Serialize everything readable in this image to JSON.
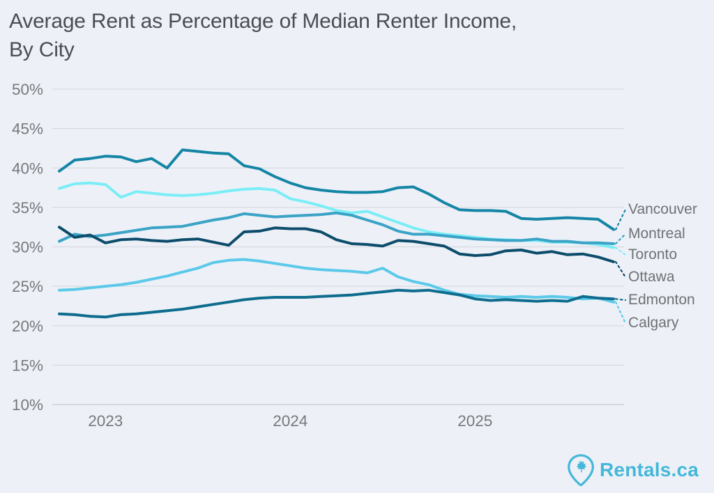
{
  "header": {
    "title_line1": "Average Rent as Percentage of Median Renter Income,",
    "title_line2": "By City"
  },
  "chart_data": {
    "type": "line",
    "title": "Average Rent as Percentage of Median Renter Income, By City",
    "y_unit": "%",
    "ylim": [
      10,
      50
    ],
    "y_ticks": [
      50,
      45,
      40,
      35,
      30,
      25,
      20,
      15,
      10
    ],
    "x_tick_labels": [
      "2023",
      "2024",
      "2025"
    ],
    "grid": "horizontal",
    "legend_position": "right-edge-labels",
    "x": [
      "2022-10",
      "2022-11",
      "2022-12",
      "2023-01",
      "2023-02",
      "2023-03",
      "2023-04",
      "2023-05",
      "2023-06",
      "2023-07",
      "2023-08",
      "2023-09",
      "2023-10",
      "2023-11",
      "2023-12",
      "2024-01",
      "2024-02",
      "2024-03",
      "2024-04",
      "2024-05",
      "2024-06",
      "2024-07",
      "2024-08",
      "2024-09",
      "2024-10",
      "2024-11",
      "2024-12",
      "2025-01",
      "2025-02",
      "2025-03",
      "2025-04",
      "2025-05",
      "2025-06",
      "2025-07",
      "2025-08",
      "2025-09",
      "2025-10"
    ],
    "series": [
      {
        "name": "Vancouver",
        "color": "#1585A6",
        "values": [
          39.6,
          41.0,
          41.2,
          41.5,
          41.4,
          40.8,
          41.2,
          40.0,
          42.3,
          42.1,
          41.9,
          41.8,
          40.3,
          39.9,
          38.9,
          38.1,
          37.5,
          37.2,
          37.0,
          36.9,
          36.9,
          37.0,
          37.5,
          37.6,
          36.7,
          35.6,
          34.7,
          34.6,
          34.6,
          34.5,
          33.6,
          33.5,
          33.6,
          33.7,
          33.6,
          33.5,
          32.2
        ]
      },
      {
        "name": "Montreal",
        "color": "#3BA3C6",
        "values": [
          30.7,
          31.6,
          31.3,
          31.5,
          31.8,
          32.1,
          32.4,
          32.5,
          32.6,
          33.0,
          33.4,
          33.7,
          34.2,
          34.0,
          33.8,
          33.9,
          34.0,
          34.1,
          34.3,
          34.0,
          33.4,
          32.8,
          32.0,
          31.6,
          31.6,
          31.4,
          31.2,
          31.0,
          30.9,
          30.8,
          30.8,
          31.0,
          30.7,
          30.7,
          30.5,
          30.5,
          30.4
        ]
      },
      {
        "name": "Toronto",
        "color": "#7BEDF6",
        "values": [
          37.4,
          38.0,
          38.1,
          37.9,
          36.3,
          37.0,
          36.8,
          36.6,
          36.5,
          36.6,
          36.8,
          37.1,
          37.3,
          37.4,
          37.2,
          36.1,
          35.7,
          35.2,
          34.6,
          34.3,
          34.5,
          33.8,
          33.1,
          32.4,
          31.9,
          31.6,
          31.4,
          31.2,
          31.0,
          30.9,
          30.8,
          30.8,
          30.6,
          30.6,
          30.5,
          30.3,
          29.9
        ]
      },
      {
        "name": "Ottawa",
        "color": "#0D4D6B",
        "values": [
          32.5,
          31.2,
          31.5,
          30.5,
          30.9,
          31.0,
          30.8,
          30.7,
          30.9,
          31.0,
          30.6,
          30.2,
          31.9,
          32.0,
          32.4,
          32.3,
          32.3,
          31.9,
          30.9,
          30.4,
          30.3,
          30.1,
          30.8,
          30.7,
          30.4,
          30.1,
          29.1,
          28.9,
          29.0,
          29.5,
          29.6,
          29.2,
          29.4,
          29.0,
          29.1,
          28.7,
          28.1
        ]
      },
      {
        "name": "Edmonton",
        "color": "#0E6C8E",
        "values": [
          21.5,
          21.4,
          21.2,
          21.1,
          21.4,
          21.5,
          21.7,
          21.9,
          22.1,
          22.4,
          22.7,
          23.0,
          23.3,
          23.5,
          23.6,
          23.6,
          23.6,
          23.7,
          23.8,
          23.9,
          24.1,
          24.3,
          24.5,
          24.4,
          24.5,
          24.2,
          23.9,
          23.4,
          23.2,
          23.3,
          23.2,
          23.1,
          23.2,
          23.1,
          23.7,
          23.5,
          23.4
        ]
      },
      {
        "name": "Calgary",
        "color": "#5BC9E9",
        "values": [
          24.5,
          24.6,
          24.8,
          25.0,
          25.2,
          25.5,
          25.9,
          26.3,
          26.8,
          27.3,
          28.0,
          28.3,
          28.4,
          28.2,
          27.9,
          27.6,
          27.3,
          27.1,
          27.0,
          26.9,
          26.7,
          27.3,
          26.2,
          25.6,
          25.2,
          24.5,
          24.0,
          23.8,
          23.7,
          23.6,
          23.7,
          23.6,
          23.7,
          23.6,
          23.4,
          23.5,
          23.0
        ]
      }
    ]
  },
  "footer": {
    "brand": "Rentals.ca",
    "brand_color": "#45B7D9"
  }
}
